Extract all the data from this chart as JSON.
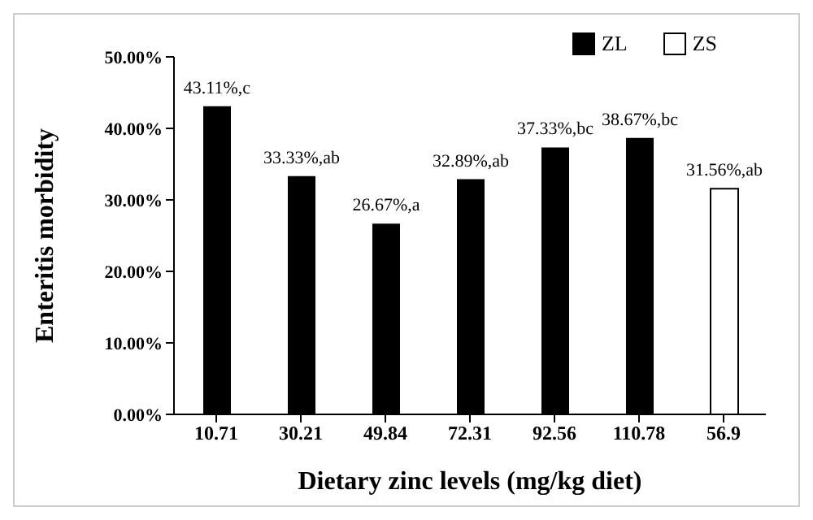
{
  "chart_data": {
    "type": "bar",
    "xlabel": "Dietary zinc levels (mg/kg diet)",
    "ylabel": "Enteritis morbidity",
    "categories": [
      "10.71",
      "30.21",
      "49.84",
      "72.31",
      "92.56",
      "110.78",
      "56.9"
    ],
    "series": [
      {
        "name": "ZL",
        "color": "#000000",
        "values": [
          43.11,
          33.33,
          26.67,
          32.89,
          37.33,
          38.67,
          null
        ],
        "value_labels": [
          "43.11%,c",
          "33.33%,ab",
          "26.67%,a",
          "32.89%,ab",
          "37.33%,bc",
          "38.67%,bc",
          null
        ]
      },
      {
        "name": "ZS",
        "color": "#ffffff",
        "values": [
          null,
          null,
          null,
          null,
          null,
          null,
          31.56
        ],
        "value_labels": [
          null,
          null,
          null,
          null,
          null,
          null,
          "31.56%,ab"
        ]
      }
    ],
    "ylim": [
      0,
      50
    ],
    "yticks": [
      {
        "value": 0,
        "label": "0.00%"
      },
      {
        "value": 10,
        "label": "10.00%"
      },
      {
        "value": 20,
        "label": "20.00%"
      },
      {
        "value": 30,
        "label": "30.00%"
      },
      {
        "value": 40,
        "label": "40.00%"
      },
      {
        "value": 50,
        "label": "50.00%"
      }
    ],
    "grid": false,
    "legend": "top right"
  }
}
